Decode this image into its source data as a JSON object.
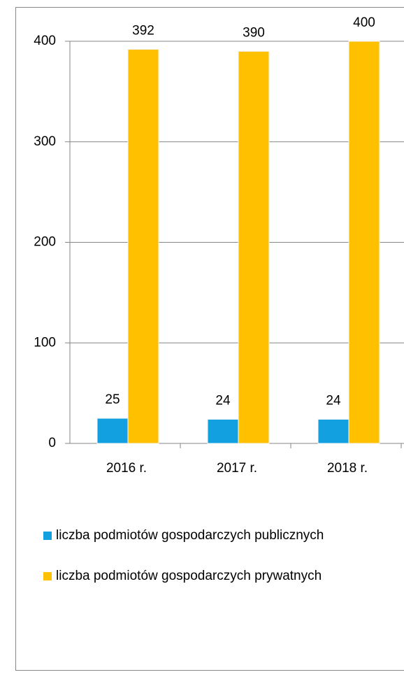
{
  "chart_data": {
    "type": "bar",
    "categories": [
      "2016 r.",
      "2017 r.",
      "2018 r."
    ],
    "series": [
      {
        "name": "liczba podmiotów gospodarczych publicznych",
        "color": "#13a0e0",
        "values": [
          25,
          24,
          24
        ]
      },
      {
        "name": "liczba podmiotów gospodarczych prywatnych",
        "color": "#ffc000",
        "values": [
          392,
          390,
          400
        ]
      }
    ],
    "ylim": [
      0,
      400
    ],
    "yticks": [
      0,
      100,
      200,
      300,
      400
    ],
    "grid": true,
    "legend": "bottom"
  }
}
